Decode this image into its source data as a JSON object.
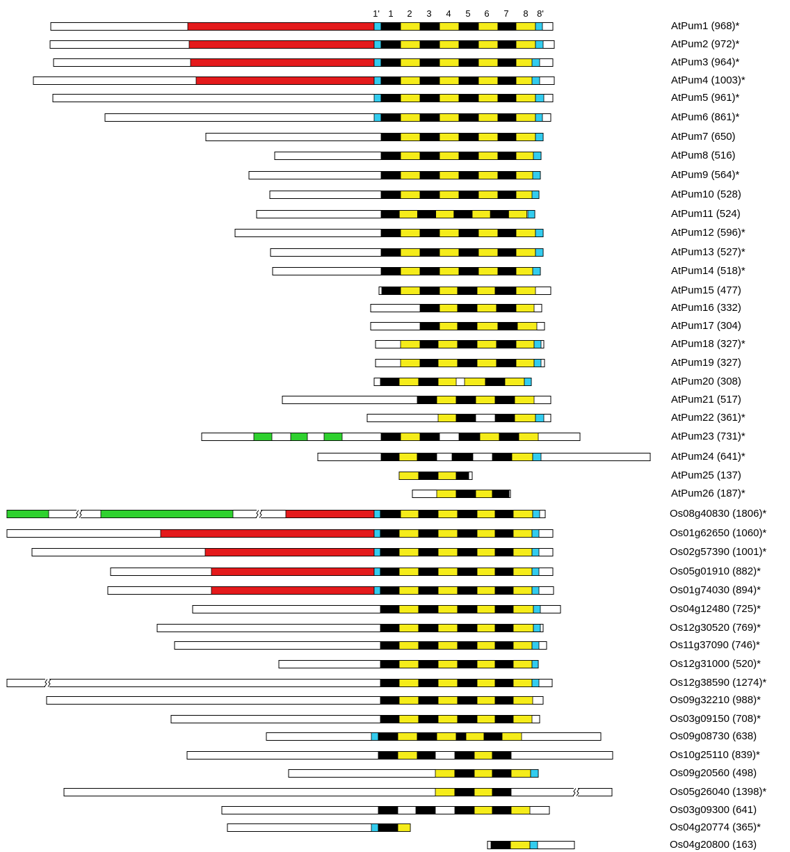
{
  "repeat_headers": [
    "1'",
    "1",
    "2",
    "3",
    "4",
    "5",
    "6",
    "7",
    "8",
    "8'"
  ],
  "colors": {
    "outline": "#000000",
    "background": "#ffffff",
    "linker": "#ffffff",
    "repeat_odd": "#000000",
    "repeat_even": "#f5ec1a",
    "pseudo_repeat": "#33ccee",
    "n_terminal_domain": "#e41a1c",
    "other_domain": "#2fd12f"
  },
  "legend_markers": {
    "asterisk_meaning_shown": false
  },
  "proteins": [
    {
      "label": "AtPum1 (968)*"
    },
    {
      "label": "AtPum2 (972)*"
    },
    {
      "label": "AtPum3 (964)*"
    },
    {
      "label": "AtPum4 (1003)*"
    },
    {
      "label": "AtPum5 (961)*"
    },
    {
      "label": "AtPum6 (861)*"
    },
    {
      "label": "AtPum7 (650)"
    },
    {
      "label": "AtPum8 (516)"
    },
    {
      "label": "AtPum9 (564)*"
    },
    {
      "label": "AtPum10 (528)"
    },
    {
      "label": "AtPum11 (524)"
    },
    {
      "label": "AtPum12 (596)*"
    },
    {
      "label": "AtPum13 (527)*"
    },
    {
      "label": "AtPum14 (518)*"
    },
    {
      "label": "AtPum15 (477)"
    },
    {
      "label": "AtPum16 (332)"
    },
    {
      "label": "AtPum17 (304)"
    },
    {
      "label": "AtPum18 (327)*"
    },
    {
      "label": "AtPum19 (327)"
    },
    {
      "label": "AtPum20 (308)"
    },
    {
      "label": "AtPum21 (517)"
    },
    {
      "label": "AtPum22 (361)*"
    },
    {
      "label": "AtPum23 (731)*"
    },
    {
      "label": "AtPum24 (641)*"
    },
    {
      "label": "AtPum25 (137)"
    },
    {
      "label": "AtPum26 (187)*"
    },
    {
      "label": "Os08g40830 (1806)*"
    },
    {
      "label": "Os01g62650 (1060)*"
    },
    {
      "label": "Os02g57390 (1001)*"
    },
    {
      "label": "Os05g01910 (882)*"
    },
    {
      "label": "Os01g74030 (894)*"
    },
    {
      "label": "Os04g12480 (725)*"
    },
    {
      "label": "Os12g30520 (769)*"
    },
    {
      "label": "Os11g37090 (746)*"
    },
    {
      "label": "Os12g31000 (520)*"
    },
    {
      "label": "Os12g38590 (1274)*"
    },
    {
      "label": "Os09g32210 (988)*"
    },
    {
      "label": "Os03g09150 (708)*"
    },
    {
      "label": "Os09g08730 (638)"
    },
    {
      "label": "Os10g25110 (839)*"
    },
    {
      "label": "Os09g20560 (498)"
    },
    {
      "label": "Os05g26040 (1398)*"
    },
    {
      "label": "Os03g09300 (641)"
    },
    {
      "label": "Os04g20774 (365)*"
    },
    {
      "label": "Os04g20800 (163)"
    }
  ]
}
